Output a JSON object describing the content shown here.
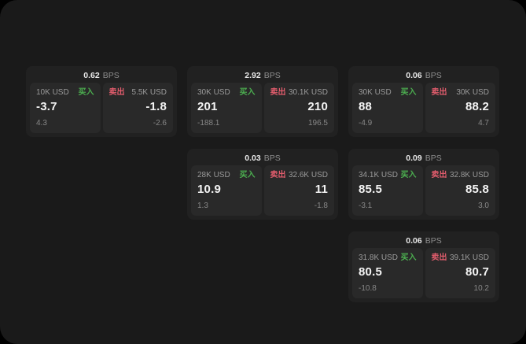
{
  "labels": {
    "bps_unit": "BPS",
    "buy": "买入",
    "sell": "卖出"
  },
  "colors": {
    "buy": "#4caf50",
    "sell": "#e25d6d",
    "window_bg": "#1a1a1a",
    "card_bg": "#212121",
    "panel_bg": "#292929"
  },
  "cards": [
    {
      "bps": "0.62",
      "buy": {
        "amount": "10K USD",
        "price": "-3.7",
        "change": "4.3"
      },
      "sell": {
        "amount": "5.5K USD",
        "price": "-1.8",
        "change": "-2.6"
      }
    },
    {
      "bps": "2.92",
      "buy": {
        "amount": "30K USD",
        "price": "201",
        "change": "-188.1"
      },
      "sell": {
        "amount": "30.1K USD",
        "price": "210",
        "change": "196.5"
      }
    },
    {
      "bps": "0.06",
      "buy": {
        "amount": "30K USD",
        "price": "88",
        "change": "-4.9"
      },
      "sell": {
        "amount": "30K USD",
        "price": "88.2",
        "change": "4.7"
      }
    },
    {
      "bps": "0.03",
      "buy": {
        "amount": "28K USD",
        "price": "10.9",
        "change": "1.3"
      },
      "sell": {
        "amount": "32.6K USD",
        "price": "11",
        "change": "-1.8"
      }
    },
    {
      "bps": "0.09",
      "buy": {
        "amount": "34.1K USD",
        "price": "85.5",
        "change": "-3.1"
      },
      "sell": {
        "amount": "32.8K USD",
        "price": "85.8",
        "change": "3.0"
      }
    },
    {
      "bps": "0.06",
      "buy": {
        "amount": "31.8K USD",
        "price": "80.5",
        "change": "-10.8"
      },
      "sell": {
        "amount": "39.1K USD",
        "price": "80.7",
        "change": "10.2"
      }
    }
  ]
}
